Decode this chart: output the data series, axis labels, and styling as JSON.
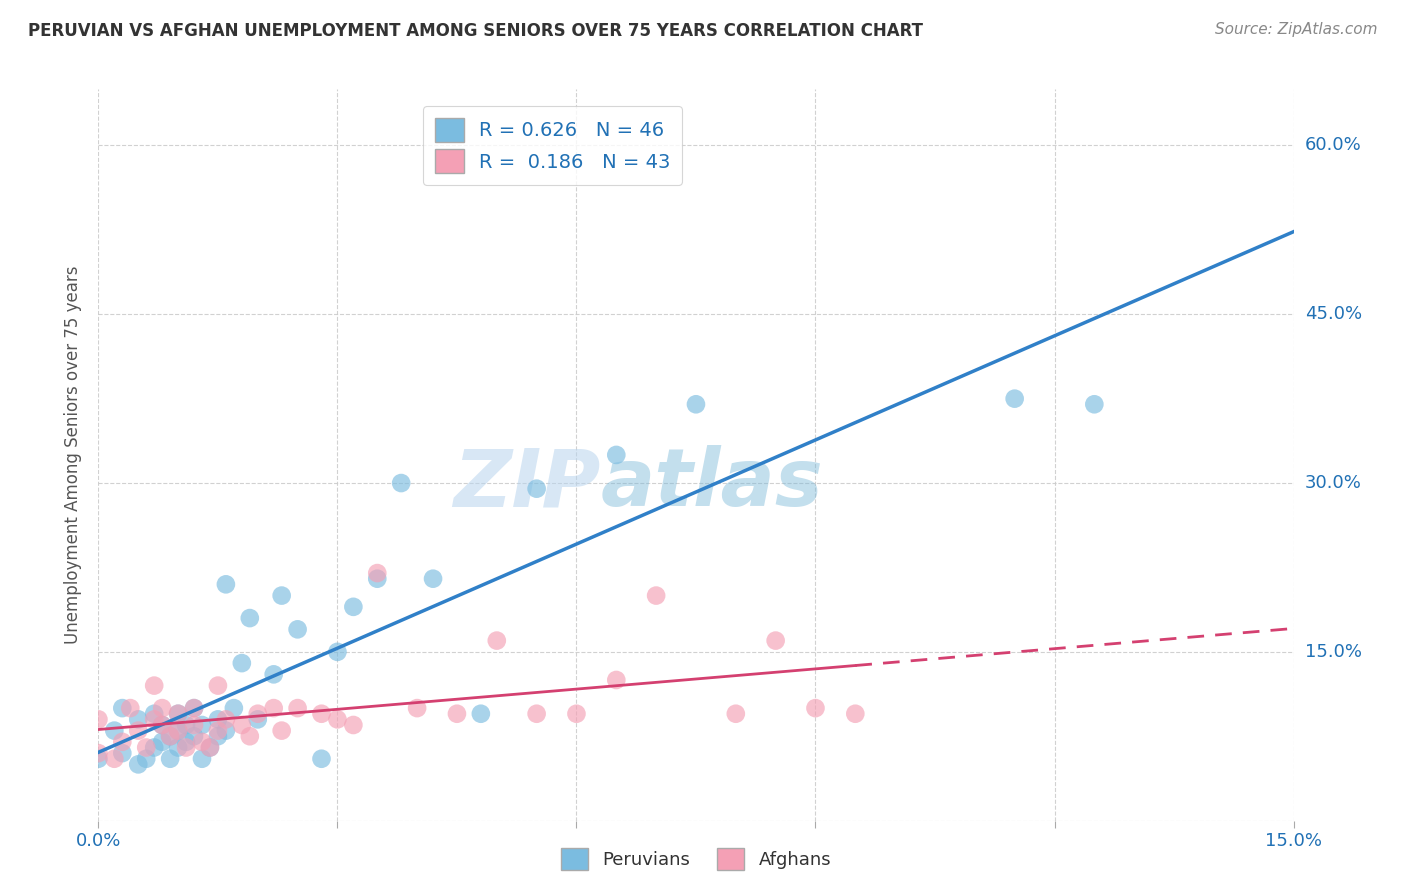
{
  "title": "PERUVIAN VS AFGHAN UNEMPLOYMENT AMONG SENIORS OVER 75 YEARS CORRELATION CHART",
  "source": "Source: ZipAtlas.com",
  "ylabel": "Unemployment Among Seniors over 75 years",
  "xlim": [
    0.0,
    0.15
  ],
  "ylim": [
    0.0,
    0.65
  ],
  "xticks": [
    0.0,
    0.03,
    0.06,
    0.09,
    0.12,
    0.15
  ],
  "yticks": [
    0.0,
    0.15,
    0.3,
    0.45,
    0.6
  ],
  "xticklabels": [
    "0.0%",
    "",
    "",
    "",
    "",
    "15.0%"
  ],
  "yticklabels_right": [
    "60.0%",
    "45.0%",
    "30.0%",
    "15.0%"
  ],
  "yticks_right": [
    0.6,
    0.45,
    0.3,
    0.15
  ],
  "peruvian_color": "#7bbce0",
  "afghan_color": "#f4a0b5",
  "peruvian_line_color": "#3080c8",
  "afghan_line_color": "#d44070",
  "peruvian_R": 0.626,
  "peruvian_N": 46,
  "afghan_R": 0.186,
  "afghan_N": 43,
  "watermark_zip": "ZIP",
  "watermark_atlas": "atlas",
  "peruvian_x": [
    0.0,
    0.002,
    0.003,
    0.003,
    0.005,
    0.005,
    0.006,
    0.007,
    0.007,
    0.008,
    0.008,
    0.009,
    0.009,
    0.01,
    0.01,
    0.01,
    0.011,
    0.011,
    0.012,
    0.012,
    0.013,
    0.013,
    0.014,
    0.015,
    0.015,
    0.016,
    0.016,
    0.017,
    0.018,
    0.019,
    0.02,
    0.022,
    0.023,
    0.025,
    0.028,
    0.03,
    0.032,
    0.035,
    0.038,
    0.042,
    0.048,
    0.055,
    0.065,
    0.075,
    0.115,
    0.125
  ],
  "peruvian_y": [
    0.055,
    0.08,
    0.06,
    0.1,
    0.05,
    0.09,
    0.055,
    0.065,
    0.095,
    0.07,
    0.085,
    0.075,
    0.055,
    0.08,
    0.095,
    0.065,
    0.085,
    0.07,
    0.1,
    0.075,
    0.055,
    0.085,
    0.065,
    0.09,
    0.075,
    0.08,
    0.21,
    0.1,
    0.14,
    0.18,
    0.09,
    0.13,
    0.2,
    0.17,
    0.055,
    0.15,
    0.19,
    0.215,
    0.3,
    0.215,
    0.095,
    0.295,
    0.325,
    0.37,
    0.375,
    0.37
  ],
  "afghan_x": [
    0.0,
    0.0,
    0.002,
    0.003,
    0.004,
    0.005,
    0.006,
    0.007,
    0.007,
    0.008,
    0.008,
    0.009,
    0.01,
    0.01,
    0.011,
    0.012,
    0.012,
    0.013,
    0.014,
    0.015,
    0.015,
    0.016,
    0.018,
    0.019,
    0.02,
    0.022,
    0.023,
    0.025,
    0.028,
    0.03,
    0.032,
    0.035,
    0.04,
    0.045,
    0.05,
    0.055,
    0.06,
    0.065,
    0.07,
    0.08,
    0.085,
    0.09,
    0.095
  ],
  "afghan_y": [
    0.06,
    0.09,
    0.055,
    0.07,
    0.1,
    0.08,
    0.065,
    0.09,
    0.12,
    0.085,
    0.1,
    0.075,
    0.08,
    0.095,
    0.065,
    0.085,
    0.1,
    0.07,
    0.065,
    0.08,
    0.12,
    0.09,
    0.085,
    0.075,
    0.095,
    0.1,
    0.08,
    0.1,
    0.095,
    0.09,
    0.085,
    0.22,
    0.1,
    0.095,
    0.16,
    0.095,
    0.095,
    0.125,
    0.2,
    0.095,
    0.16,
    0.1,
    0.095
  ],
  "background_color": "#ffffff",
  "plot_bg_color": "#ffffff",
  "grid_color": "#cccccc",
  "legend_label_color": "#2171b5",
  "tick_label_color": "#2171b5"
}
